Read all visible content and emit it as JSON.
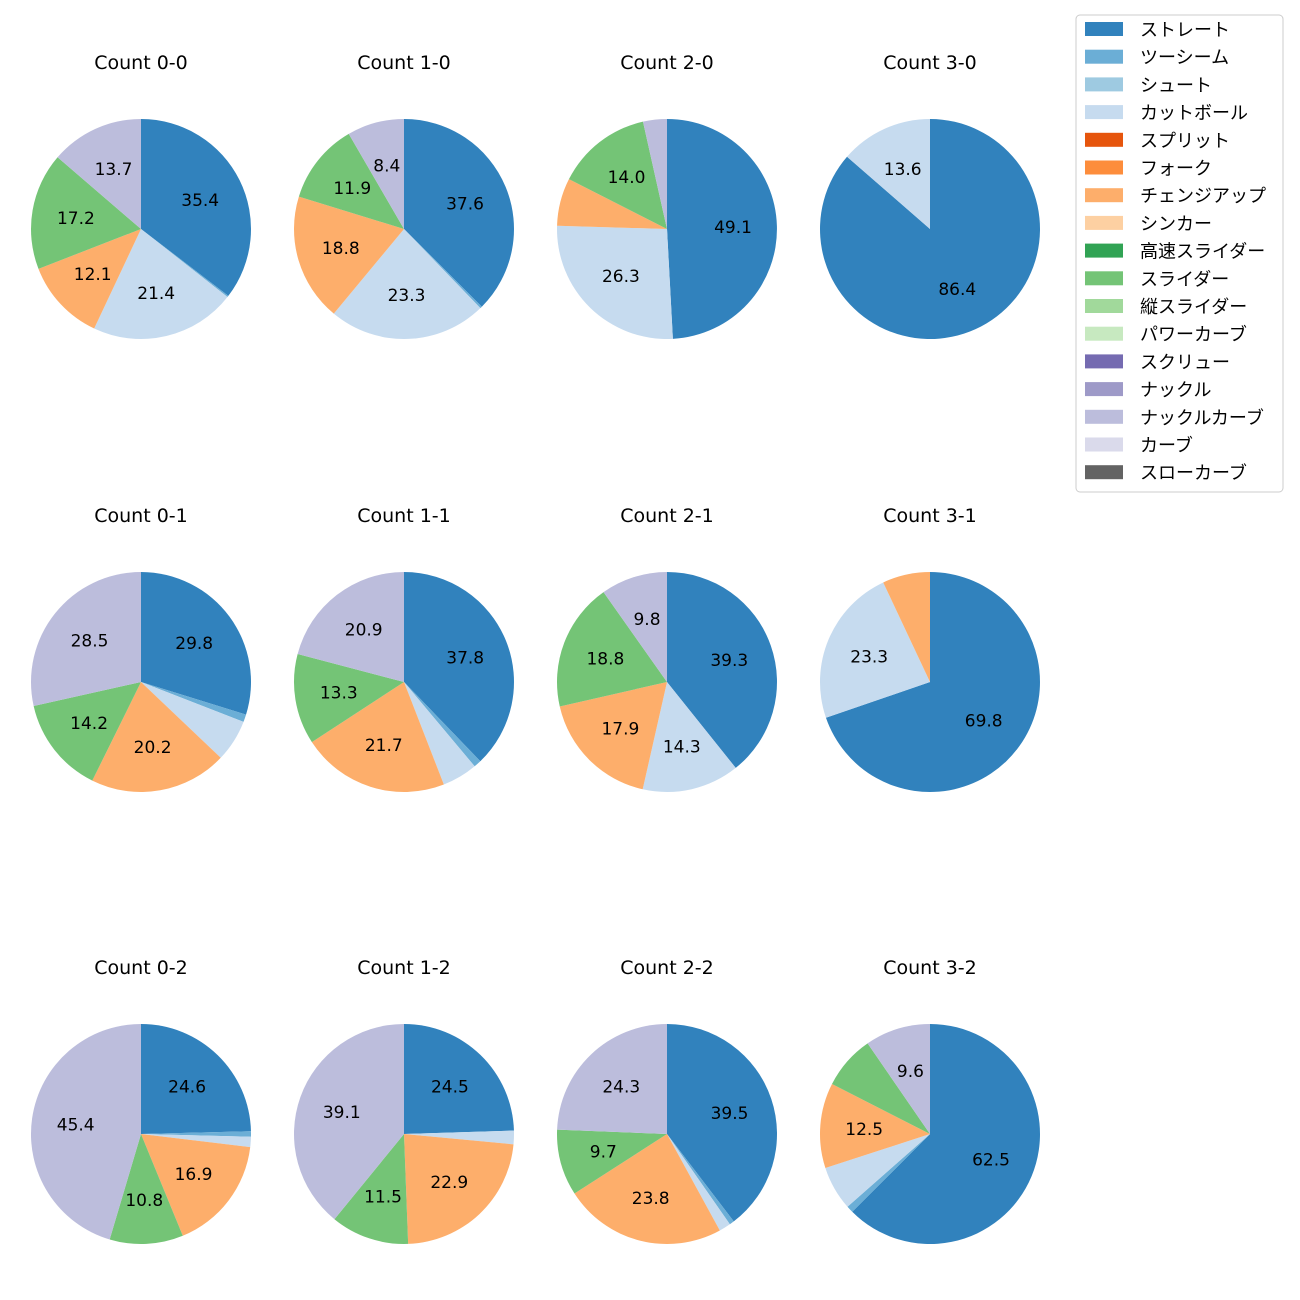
{
  "chart_data": {
    "type": "pie",
    "colors": {
      "ストレート": "#3182bd",
      "ツーシーム": "#6baed6",
      "シュート": "#9ecae1",
      "カットボール": "#c6dbef",
      "スプリット": "#e6550d",
      "フォーク": "#fd8d3c",
      "チェンジアップ": "#fdae6b",
      "シンカー": "#fdd0a2",
      "高速スライダー": "#31a354",
      "スライダー": "#74c476",
      "縦スライダー": "#a1d99b",
      "パワーカーブ": "#c7e9c0",
      "スクリュー": "#756bb1",
      "ナックル": "#9e9ac8",
      "ナックルカーブ": "#bcbddc",
      "カーブ": "#dadaeb",
      "スローカーブ": "#636363"
    },
    "legend": [
      "ストレート",
      "ツーシーム",
      "シュート",
      "カットボール",
      "スプリット",
      "フォーク",
      "チェンジアップ",
      "シンカー",
      "高速スライダー",
      "スライダー",
      "縦スライダー",
      "パワーカーブ",
      "スクリュー",
      "ナックル",
      "ナックルカーブ",
      "カーブ",
      "スローカーブ"
    ],
    "charts": [
      {
        "title": "Count 0-0",
        "slices": [
          {
            "pitch": "ストレート",
            "value": 35.4,
            "label": "35.4"
          },
          {
            "pitch": "ツーシーム",
            "value": 0.2,
            "label": ""
          },
          {
            "pitch": "カットボール",
            "value": 21.4,
            "label": "21.4"
          },
          {
            "pitch": "チェンジアップ",
            "value": 12.1,
            "label": "12.1"
          },
          {
            "pitch": "スライダー",
            "value": 17.2,
            "label": "17.2"
          },
          {
            "pitch": "ナックルカーブ",
            "value": 13.7,
            "label": "13.7"
          }
        ]
      },
      {
        "title": "Count 1-0",
        "slices": [
          {
            "pitch": "ストレート",
            "value": 37.6,
            "label": "37.6"
          },
          {
            "pitch": "ツーシーム",
            "value": 0.3,
            "label": ""
          },
          {
            "pitch": "カットボール",
            "value": 23.3,
            "label": "23.3"
          },
          {
            "pitch": "チェンジアップ",
            "value": 18.8,
            "label": "18.8"
          },
          {
            "pitch": "スライダー",
            "value": 11.9,
            "label": "11.9"
          },
          {
            "pitch": "ナックルカーブ",
            "value": 8.4,
            "label": "8.4"
          }
        ]
      },
      {
        "title": "Count 2-0",
        "slices": [
          {
            "pitch": "ストレート",
            "value": 49.1,
            "label": "49.1"
          },
          {
            "pitch": "カットボール",
            "value": 26.3,
            "label": "26.3"
          },
          {
            "pitch": "チェンジアップ",
            "value": 7.0,
            "label": ""
          },
          {
            "pitch": "スライダー",
            "value": 14.0,
            "label": "14.0"
          },
          {
            "pitch": "ナックルカーブ",
            "value": 3.5,
            "label": ""
          }
        ]
      },
      {
        "title": "Count 3-0",
        "slices": [
          {
            "pitch": "ストレート",
            "value": 86.4,
            "label": "86.4"
          },
          {
            "pitch": "カットボール",
            "value": 13.6,
            "label": "13.6"
          }
        ]
      },
      {
        "title": "Count 0-1",
        "slices": [
          {
            "pitch": "ストレート",
            "value": 29.8,
            "label": "29.8"
          },
          {
            "pitch": "ツーシーム",
            "value": 1.1,
            "label": ""
          },
          {
            "pitch": "カットボール",
            "value": 6.2,
            "label": ""
          },
          {
            "pitch": "チェンジアップ",
            "value": 20.2,
            "label": "20.2"
          },
          {
            "pitch": "スライダー",
            "value": 14.2,
            "label": "14.2"
          },
          {
            "pitch": "ナックルカーブ",
            "value": 28.5,
            "label": "28.5"
          }
        ]
      },
      {
        "title": "Count 1-1",
        "slices": [
          {
            "pitch": "ストレート",
            "value": 37.8,
            "label": "37.8"
          },
          {
            "pitch": "ツーシーム",
            "value": 1.1,
            "label": ""
          },
          {
            "pitch": "カットボール",
            "value": 5.2,
            "label": ""
          },
          {
            "pitch": "チェンジアップ",
            "value": 21.7,
            "label": "21.7"
          },
          {
            "pitch": "スライダー",
            "value": 13.3,
            "label": "13.3"
          },
          {
            "pitch": "ナックルカーブ",
            "value": 20.9,
            "label": "20.9"
          }
        ]
      },
      {
        "title": "Count 2-1",
        "slices": [
          {
            "pitch": "ストレート",
            "value": 39.3,
            "label": "39.3"
          },
          {
            "pitch": "カットボール",
            "value": 14.3,
            "label": "14.3"
          },
          {
            "pitch": "チェンジアップ",
            "value": 17.9,
            "label": "17.9"
          },
          {
            "pitch": "スライダー",
            "value": 18.8,
            "label": "18.8"
          },
          {
            "pitch": "ナックルカーブ",
            "value": 9.8,
            "label": "9.8"
          }
        ]
      },
      {
        "title": "Count 3-1",
        "slices": [
          {
            "pitch": "ストレート",
            "value": 69.8,
            "label": "69.8"
          },
          {
            "pitch": "カットボール",
            "value": 23.3,
            "label": "23.3"
          },
          {
            "pitch": "チェンジアップ",
            "value": 7.0,
            "label": ""
          }
        ]
      },
      {
        "title": "Count 0-2",
        "slices": [
          {
            "pitch": "ストレート",
            "value": 24.6,
            "label": "24.6"
          },
          {
            "pitch": "ツーシーム",
            "value": 0.8,
            "label": ""
          },
          {
            "pitch": "カットボール",
            "value": 1.5,
            "label": ""
          },
          {
            "pitch": "チェンジアップ",
            "value": 16.9,
            "label": "16.9"
          },
          {
            "pitch": "スライダー",
            "value": 10.8,
            "label": "10.8"
          },
          {
            "pitch": "ナックルカーブ",
            "value": 45.4,
            "label": "45.4"
          }
        ]
      },
      {
        "title": "Count 1-2",
        "slices": [
          {
            "pitch": "ストレート",
            "value": 24.5,
            "label": "24.5"
          },
          {
            "pitch": "カットボール",
            "value": 2.0,
            "label": ""
          },
          {
            "pitch": "チェンジアップ",
            "value": 22.9,
            "label": "22.9"
          },
          {
            "pitch": "スライダー",
            "value": 11.5,
            "label": "11.5"
          },
          {
            "pitch": "ナックルカーブ",
            "value": 39.1,
            "label": "39.1"
          }
        ]
      },
      {
        "title": "Count 2-2",
        "slices": [
          {
            "pitch": "ストレート",
            "value": 39.5,
            "label": "39.5"
          },
          {
            "pitch": "ツーシーム",
            "value": 0.7,
            "label": ""
          },
          {
            "pitch": "カットボール",
            "value": 1.7,
            "label": ""
          },
          {
            "pitch": "チェンジアップ",
            "value": 23.8,
            "label": "23.8"
          },
          {
            "pitch": "スライダー",
            "value": 9.7,
            "label": "9.7"
          },
          {
            "pitch": "ナックルカーブ",
            "value": 24.3,
            "label": "24.3"
          }
        ]
      },
      {
        "title": "Count 3-2",
        "slices": [
          {
            "pitch": "ストレート",
            "value": 62.5,
            "label": "62.5"
          },
          {
            "pitch": "ツーシーム",
            "value": 1.0,
            "label": ""
          },
          {
            "pitch": "カットボール",
            "value": 6.5,
            "label": ""
          },
          {
            "pitch": "チェンジアップ",
            "value": 12.5,
            "label": "12.5"
          },
          {
            "pitch": "スライダー",
            "value": 7.9,
            "label": ""
          },
          {
            "pitch": "ナックルカーブ",
            "value": 9.6,
            "label": "9.6"
          }
        ]
      }
    ]
  }
}
